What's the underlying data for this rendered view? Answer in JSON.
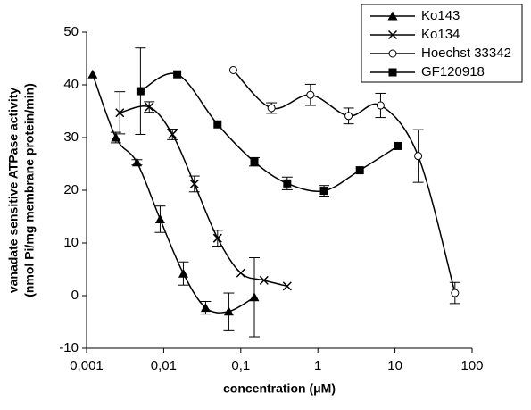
{
  "chart_data": {
    "type": "line",
    "xlabel": "concentration (μM)",
    "ylabel": [
      "vanadate sensitive ATPase activity",
      "(nmol Pi/mg membrane protein/min)"
    ],
    "xscale": "log",
    "xlim": [
      0.001,
      100
    ],
    "xticks": [
      {
        "value": 0.001,
        "label": "0,001"
      },
      {
        "value": 0.01,
        "label": "0,01"
      },
      {
        "value": 0.1,
        "label": "0,1"
      },
      1,
      10,
      100
    ],
    "ylim": [
      -10,
      50
    ],
    "yticks": [
      -10,
      0,
      10,
      20,
      30,
      40,
      50
    ],
    "grid": false,
    "legend": "top-right",
    "series": [
      {
        "name": "Ko143",
        "color": "#000000",
        "marker": "triangle",
        "x": [
          0.0012,
          0.0024,
          0.0045,
          0.009,
          0.018,
          0.035,
          0.07,
          0.15
        ],
        "values": [
          42,
          30,
          25.3,
          14.5,
          4.2,
          -2.3,
          -3,
          -0.3
        ],
        "errors": [
          0,
          1,
          0.5,
          2.5,
          2.2,
          1.2,
          3.5,
          7.5
        ]
      },
      {
        "name": "Ko134",
        "color": "#000000",
        "marker": "cross",
        "x": [
          0.0027,
          0.0065,
          0.013,
          0.025,
          0.05,
          0.1,
          0.2,
          0.4
        ],
        "values": [
          34.7,
          35.8,
          30.6,
          21.2,
          10.9,
          4.3,
          2.9,
          1.8
        ],
        "errors": [
          4,
          1,
          1,
          1.5,
          1.5,
          0,
          0,
          0
        ]
      },
      {
        "name": "Hoechst 33342",
        "color": "#000000",
        "marker": "circle",
        "x": [
          0.08,
          0.25,
          0.8,
          2.5,
          6.5,
          20,
          60
        ],
        "values": [
          42.8,
          35.6,
          38.1,
          34.1,
          36.1,
          26.5,
          0.5
        ],
        "errors": [
          0,
          1,
          2,
          1.5,
          2.3,
          5,
          2
        ]
      },
      {
        "name": "GF120918",
        "color": "#000000",
        "marker": "square",
        "x": [
          0.005,
          0.015,
          0.05,
          0.15,
          0.4,
          1.2,
          3.5,
          11
        ],
        "values": [
          38.8,
          42,
          32.5,
          25.4,
          21.3,
          19.9,
          23.8,
          28.4
        ],
        "errors": [
          8.2,
          0,
          0,
          0.8,
          1.2,
          1,
          0,
          0
        ]
      }
    ]
  }
}
